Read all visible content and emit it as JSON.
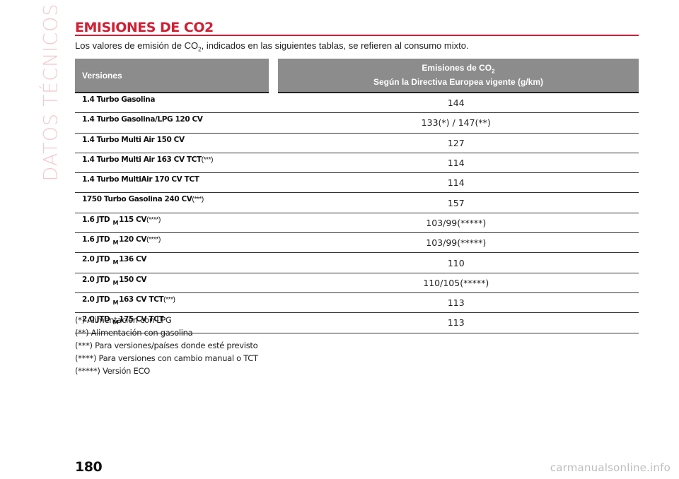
{
  "section_label": "DATOS TÉCNICOS",
  "title": "EMISIONES DE CO2",
  "intro": {
    "before": "Los valores de emisión de CO",
    "sub": "2",
    "after": ", indicados en las siguientes tablas, se refieren al consumo mixto."
  },
  "table": {
    "header_versions": "Versiones",
    "header_emissions_line1": "Emisiones de CO",
    "header_emissions_sub": "2",
    "header_emissions_line2": "Según la Directiva Europea vigente (g/km)",
    "rows": [
      {
        "version": "1.4 Turbo Gasolina",
        "emission": "144"
      },
      {
        "version": "1.4 Turbo Gasolina/LPG 120 CV",
        "emission": "133(*) / 147(**)"
      },
      {
        "version": "1.4 Turbo Multi Air 150 CV",
        "emission": "127"
      },
      {
        "version": "1.4 Turbo Multi Air 163 CV TCT",
        "version_note": "(***)",
        "emission": "114"
      },
      {
        "version": "1.4 Turbo MultiAir 170 CV TCT",
        "emission": "114"
      },
      {
        "version": "1750 Turbo Gasolina 240 CV",
        "version_note": "(***)",
        "emission": "157"
      },
      {
        "version": "1.6 JTD",
        "version_m": "M",
        "version_rest": "115 CV",
        "version_note": "(****)",
        "emission": "103/99(*****)"
      },
      {
        "version": "1.6 JTD",
        "version_m": "M",
        "version_rest": "120 CV",
        "version_note": "(****)",
        "emission": "103/99(*****)"
      },
      {
        "version": "2.0 JTD",
        "version_m": "M",
        "version_rest": "136 CV",
        "emission": "110"
      },
      {
        "version": "2.0 JTD",
        "version_m": "M",
        "version_rest": "150 CV",
        "emission": "110/105(*****)"
      },
      {
        "version": "2.0 JTD",
        "version_m": "M",
        "version_rest": "163 CV TCT",
        "version_note": "(***)",
        "emission": "113"
      },
      {
        "version": "2.0 JTD",
        "version_m": "M",
        "version_rest": "175 CV TCT",
        "emission": "113"
      }
    ]
  },
  "notes": [
    "(*) Alimentación con LPG",
    "(**) Alimentación con gasolina",
    "(***) Para versiones/países donde esté previsto",
    "(****) Para versiones con cambio manual o TCT",
    "(*****) Versión ECO"
  ],
  "page_number": "180",
  "watermark": "carmanualsonline.info"
}
